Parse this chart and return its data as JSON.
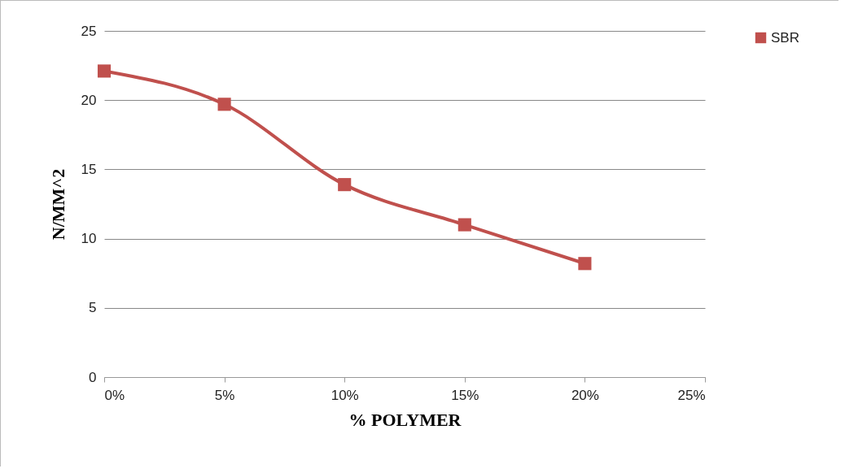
{
  "chart_data": {
    "type": "line",
    "xlabel": "% POLYMER",
    "ylabel": "N/MM^2",
    "x": [
      0,
      5,
      10,
      15,
      20
    ],
    "series": [
      {
        "name": "SBR",
        "color": "#c0504d",
        "values": [
          22.1,
          19.7,
          13.9,
          11.0,
          8.2
        ]
      }
    ],
    "xlim": [
      0,
      25
    ],
    "xticks": [
      {
        "value": 0,
        "label": "0%"
      },
      {
        "value": 5,
        "label": "5%"
      },
      {
        "value": 10,
        "label": "10%"
      },
      {
        "value": 15,
        "label": "15%"
      },
      {
        "value": 20,
        "label": "20%"
      },
      {
        "value": 25,
        "label": "25%"
      }
    ],
    "ylim": [
      0,
      25
    ],
    "yticks": [
      0,
      5,
      10,
      15,
      20,
      25
    ],
    "grid": "y",
    "legend": "right",
    "marker": "square",
    "line_style": "solid"
  }
}
